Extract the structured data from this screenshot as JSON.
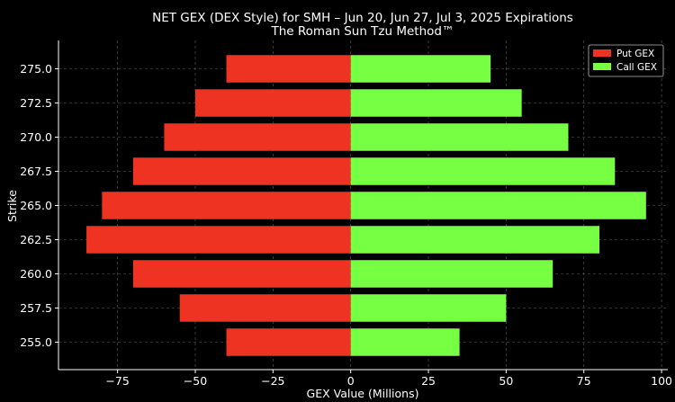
{
  "chart_data": {
    "type": "bar",
    "orientation": "horizontal",
    "title": "NET GEX (DEX Style) for SMH – Jun 20, Jun 27, Jul 3, 2025 Expirations",
    "subtitle": "The Roman Sun Tzu Method™",
    "xlabel": "GEX Value (Millions)",
    "ylabel": "Strike",
    "categories": [
      "255.0",
      "257.5",
      "260.0",
      "262.5",
      "265.0",
      "267.5",
      "270.0",
      "272.5",
      "275.0"
    ],
    "series": [
      {
        "name": "Put GEX",
        "color": "#ee3322",
        "values": [
          -40,
          -55,
          -70,
          -85,
          -80,
          -70,
          -60,
          -50,
          -40
        ]
      },
      {
        "name": "Call GEX",
        "color": "#77ff44",
        "values": [
          35,
          50,
          65,
          80,
          95,
          85,
          70,
          55,
          45
        ]
      }
    ],
    "xlim": [
      -94,
      102
    ],
    "xticks": [
      -75,
      -50,
      -25,
      0,
      25,
      50,
      75,
      100
    ],
    "xtick_labels": [
      "−75",
      "−50",
      "−25",
      "0",
      "25",
      "50",
      "75",
      "100"
    ],
    "grid": true,
    "legend": "top-right"
  }
}
